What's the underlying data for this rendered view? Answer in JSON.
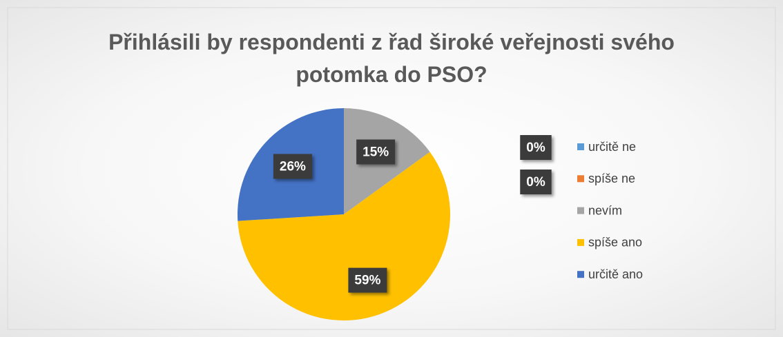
{
  "chart_data": {
    "type": "pie",
    "title": "Přihlásili by respondenti z řad široké veřejnosti svého potomka do PSO?",
    "categories": [
      "určitě ne",
      "spíše ne",
      "nevím",
      "spíše ano",
      "určitě ano"
    ],
    "values": [
      0,
      0,
      15,
      59,
      26
    ],
    "value_labels": [
      "0%",
      "0%",
      "15%",
      "59%",
      "26%"
    ],
    "colors": [
      "#5b9bd5",
      "#ed7d31",
      "#a5a5a5",
      "#ffc000",
      "#4472c4"
    ],
    "legend": "right"
  }
}
